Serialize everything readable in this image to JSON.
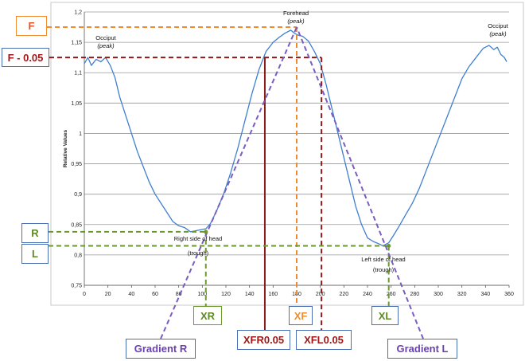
{
  "chart_data": {
    "type": "line",
    "ylabel": "Relative Values",
    "xlim": [
      0,
      360
    ],
    "ylim": [
      0.75,
      1.2
    ],
    "x_ticks": [
      "0",
      "20",
      "40",
      "60",
      "80",
      "100",
      "120",
      "140",
      "160",
      "180",
      "200",
      "220",
      "240",
      "260",
      "280",
      "300",
      "320",
      "340",
      "360"
    ],
    "y_ticks": [
      "0,75",
      "0,8",
      "0,85",
      "0,9",
      "0,95",
      "1",
      "1,05",
      "1,1",
      "1,15",
      "1,2"
    ],
    "grid": "horizontal",
    "series": [
      {
        "color": "#3f7fd0",
        "x": [
          0,
          3,
          6,
          10,
          14,
          18,
          22,
          26,
          30,
          35,
          40,
          45,
          50,
          55,
          60,
          65,
          70,
          75,
          80,
          85,
          90,
          95,
          100,
          103,
          107,
          112,
          118,
          124,
          130,
          136,
          142,
          148,
          154,
          160,
          165,
          170,
          175,
          178,
          181,
          185,
          190,
          195,
          200,
          205,
          210,
          215,
          220,
          225,
          230,
          235,
          240,
          245,
          250,
          253,
          256,
          258,
          262,
          267,
          272,
          278,
          284,
          290,
          296,
          302,
          308,
          314,
          320,
          326,
          332,
          338,
          343,
          347,
          350,
          353,
          356,
          358
        ],
        "values": [
          1.115,
          1.125,
          1.112,
          1.122,
          1.118,
          1.125,
          1.112,
          1.092,
          1.06,
          1.03,
          1.0,
          0.97,
          0.945,
          0.92,
          0.9,
          0.885,
          0.87,
          0.855,
          0.848,
          0.845,
          0.838,
          0.84,
          0.842,
          0.843,
          0.852,
          0.872,
          0.9,
          0.935,
          0.975,
          1.02,
          1.065,
          1.105,
          1.135,
          1.15,
          1.158,
          1.165,
          1.17,
          1.165,
          1.162,
          1.16,
          1.152,
          1.135,
          1.115,
          1.08,
          1.04,
          1.0,
          0.96,
          0.92,
          0.88,
          0.85,
          0.828,
          0.822,
          0.818,
          0.815,
          0.818,
          0.82,
          0.832,
          0.848,
          0.865,
          0.885,
          0.91,
          0.94,
          0.97,
          1.0,
          1.03,
          1.06,
          1.09,
          1.11,
          1.125,
          1.14,
          1.145,
          1.138,
          1.142,
          1.13,
          1.125,
          1.118
        ]
      }
    ],
    "annotations": {
      "forehead": {
        "title": "Forehead",
        "sub": "(peak)"
      },
      "occiput_left": {
        "title": "Occiput",
        "sub": "(peak)"
      },
      "occiput_right": {
        "title": "Occiput",
        "sub": "(peak)"
      },
      "right_trough": {
        "title": "Right side of head",
        "sub": "(trough)"
      },
      "left_trough": {
        "title": "Left side of head",
        "sub": "(trough)"
      }
    },
    "markers": {
      "F": {
        "y": 1.175,
        "x": 180
      },
      "F_minus": {
        "y": 1.125
      },
      "XFR": {
        "x": 153
      },
      "XFL": {
        "x": 201
      },
      "R": {
        "y": 0.838,
        "x": 103
      },
      "L": {
        "y": 0.815,
        "x": 258
      }
    },
    "colors": {
      "orange": "#f08c2e",
      "darkred": "#8b1a1a",
      "green": "#6b9a2c",
      "purple": "#7a5cc0",
      "line": "#3f7fd0"
    }
  },
  "labels": {
    "F": "F",
    "F_minus": "F - 0.05",
    "R": "R",
    "L": "L",
    "XR": "XR",
    "XF": "XF",
    "XL": "XL",
    "XFR": "XFR0.05",
    "XFL": "XFL0.05",
    "gradR": "Gradient R",
    "gradL": "Gradient L"
  }
}
